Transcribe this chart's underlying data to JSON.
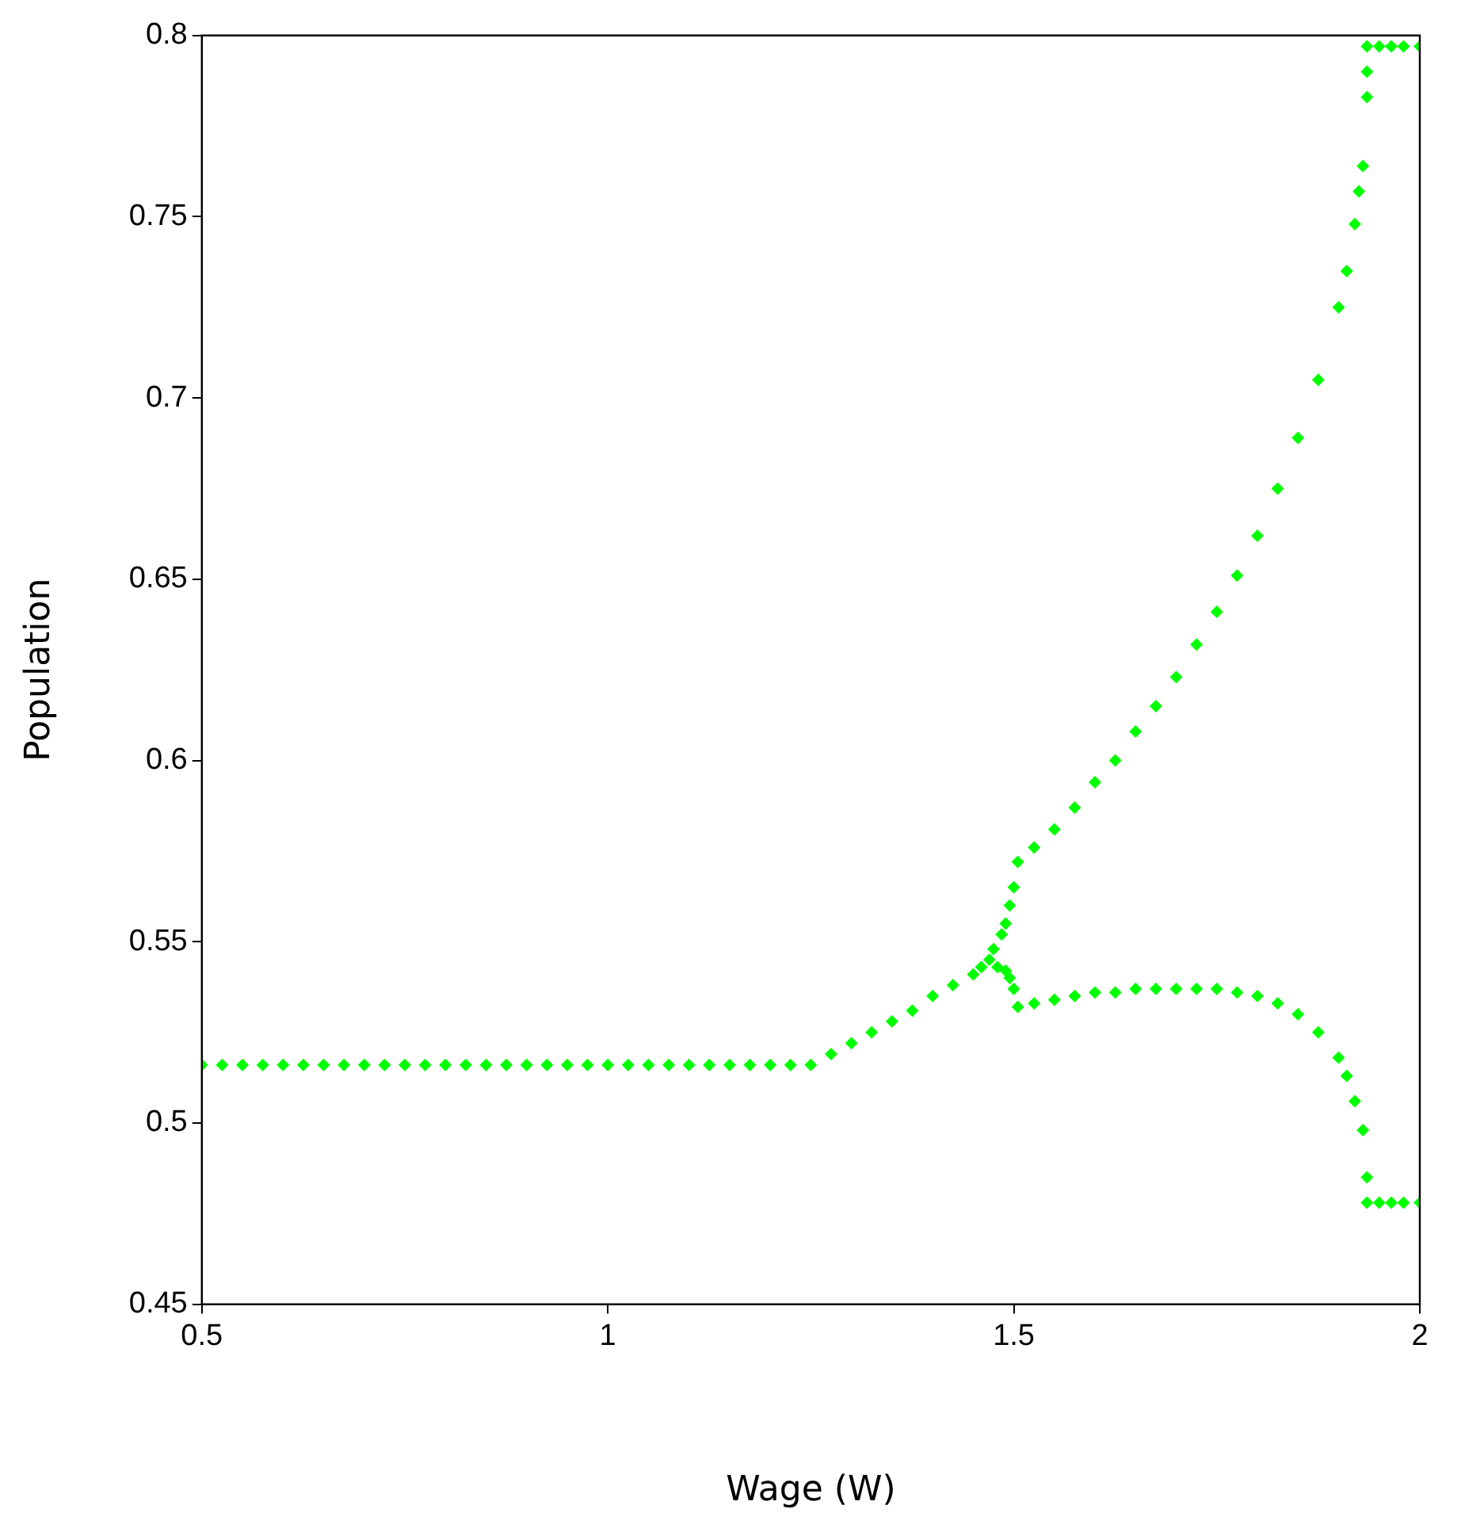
{
  "chart_data": {
    "type": "scatter",
    "xlabel": "Wage (W)",
    "ylabel": "Population",
    "xlim": [
      0.5,
      2
    ],
    "xticks": [
      0.5,
      1,
      1.5,
      2
    ],
    "ylim": [
      0.45,
      0.8
    ],
    "yticks": [
      0.45,
      0.5,
      0.55,
      0.6,
      0.65,
      0.7,
      0.75,
      0.8
    ],
    "grid": false,
    "legend": false,
    "marker": "diamond",
    "series": [
      {
        "color": "#00ff00",
        "x": [
          0.5,
          0.525,
          0.55,
          0.575,
          0.6,
          0.625,
          0.65,
          0.675,
          0.7,
          0.725,
          0.75,
          0.775,
          0.8,
          0.825,
          0.85,
          0.875,
          0.9,
          0.925,
          0.95,
          0.975,
          1,
          1.025,
          1.05,
          1.075,
          1.1,
          1.125,
          1.15,
          1.175,
          1.2,
          1.225,
          1.25,
          1.275,
          1.3,
          1.325,
          1.35,
          1.375,
          1.4,
          1.425,
          1.45,
          1.46,
          1.47,
          1.475,
          1.48,
          1.485,
          1.49,
          1.495,
          1.5,
          1.505,
          1.49,
          1.495,
          1.5,
          1.505,
          1.525,
          1.55,
          1.575,
          1.6,
          1.625,
          1.65,
          1.675,
          1.7,
          1.725,
          1.75,
          1.775,
          1.8,
          1.825,
          1.85,
          1.875,
          1.9,
          1.91,
          1.92,
          1.925,
          1.93,
          1.935,
          1.935,
          1.935,
          1.95,
          1.965,
          1.98,
          2,
          1.525,
          1.55,
          1.575,
          1.6,
          1.625,
          1.65,
          1.675,
          1.7,
          1.725,
          1.75,
          1.775,
          1.8,
          1.825,
          1.85,
          1.875,
          1.9,
          1.91,
          1.92,
          1.93,
          1.935,
          1.935,
          1.95,
          1.965,
          1.98,
          2
        ],
        "values": [
          0.516,
          0.516,
          0.516,
          0.516,
          0.516,
          0.516,
          0.516,
          0.516,
          0.516,
          0.516,
          0.516,
          0.516,
          0.516,
          0.516,
          0.516,
          0.516,
          0.516,
          0.516,
          0.516,
          0.516,
          0.516,
          0.516,
          0.516,
          0.516,
          0.516,
          0.516,
          0.516,
          0.516,
          0.516,
          0.516,
          0.516,
          0.519,
          0.522,
          0.525,
          0.528,
          0.531,
          0.535,
          0.538,
          0.541,
          0.543,
          0.545,
          0.548,
          0.543,
          0.552,
          0.555,
          0.56,
          0.565,
          0.572,
          0.542,
          0.54,
          0.537,
          0.532,
          0.576,
          0.581,
          0.587,
          0.594,
          0.6,
          0.608,
          0.615,
          0.623,
          0.632,
          0.641,
          0.651,
          0.662,
          0.675,
          0.689,
          0.705,
          0.725,
          0.735,
          0.748,
          0.757,
          0.764,
          0.783,
          0.79,
          0.797,
          0.797,
          0.797,
          0.797,
          0.797,
          0.533,
          0.534,
          0.535,
          0.536,
          0.536,
          0.537,
          0.537,
          0.537,
          0.537,
          0.537,
          0.536,
          0.535,
          0.533,
          0.53,
          0.525,
          0.518,
          0.513,
          0.506,
          0.498,
          0.485,
          0.478,
          0.478,
          0.478,
          0.478,
          0.478
        ]
      }
    ]
  }
}
